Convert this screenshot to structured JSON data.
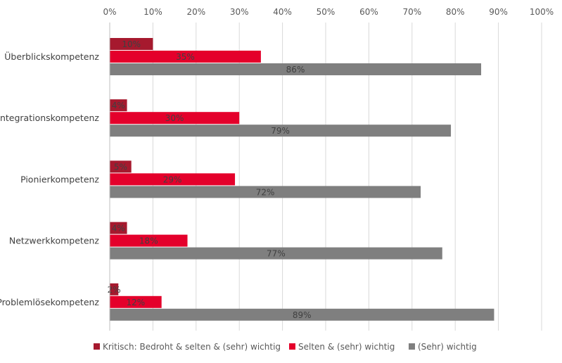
{
  "chart_data": {
    "type": "bar",
    "orientation": "horizontal",
    "categories": [
      "Überblickskompetenz",
      "Integrationskompetenz",
      "Pionierkompetenz",
      "Netzwerkkompetenz",
      "Problemlösekompetenz"
    ],
    "series": [
      {
        "name": "Kritisch: Bedroht & selten & (sehr) wichtig",
        "values": [
          10,
          4,
          5,
          4,
          2
        ],
        "labels": [
          "10%",
          "4%",
          "5%",
          "4%",
          "2%"
        ],
        "color": "#A6192E"
      },
      {
        "name": "Selten & (sehr) wichtig",
        "values": [
          35,
          30,
          29,
          18,
          12
        ],
        "labels": [
          "35%",
          "30%",
          "29%",
          "18%",
          "12%"
        ],
        "color": "#E4002B"
      },
      {
        "name": "(Sehr) wichtig",
        "values": [
          86,
          79,
          72,
          77,
          89
        ],
        "labels": [
          "86%",
          "79%",
          "72%",
          "77%",
          "89%"
        ],
        "color": "#7F7F7F"
      }
    ],
    "xlim": [
      0,
      100
    ],
    "xticks": [
      "0%",
      "10%",
      "20%",
      "30%",
      "40%",
      "50%",
      "60%",
      "70%",
      "80%",
      "90%",
      "100%"
    ],
    "axis_position": "top",
    "grid": true,
    "legend_position": "bottom",
    "title": "",
    "xlabel": "",
    "ylabel": ""
  }
}
